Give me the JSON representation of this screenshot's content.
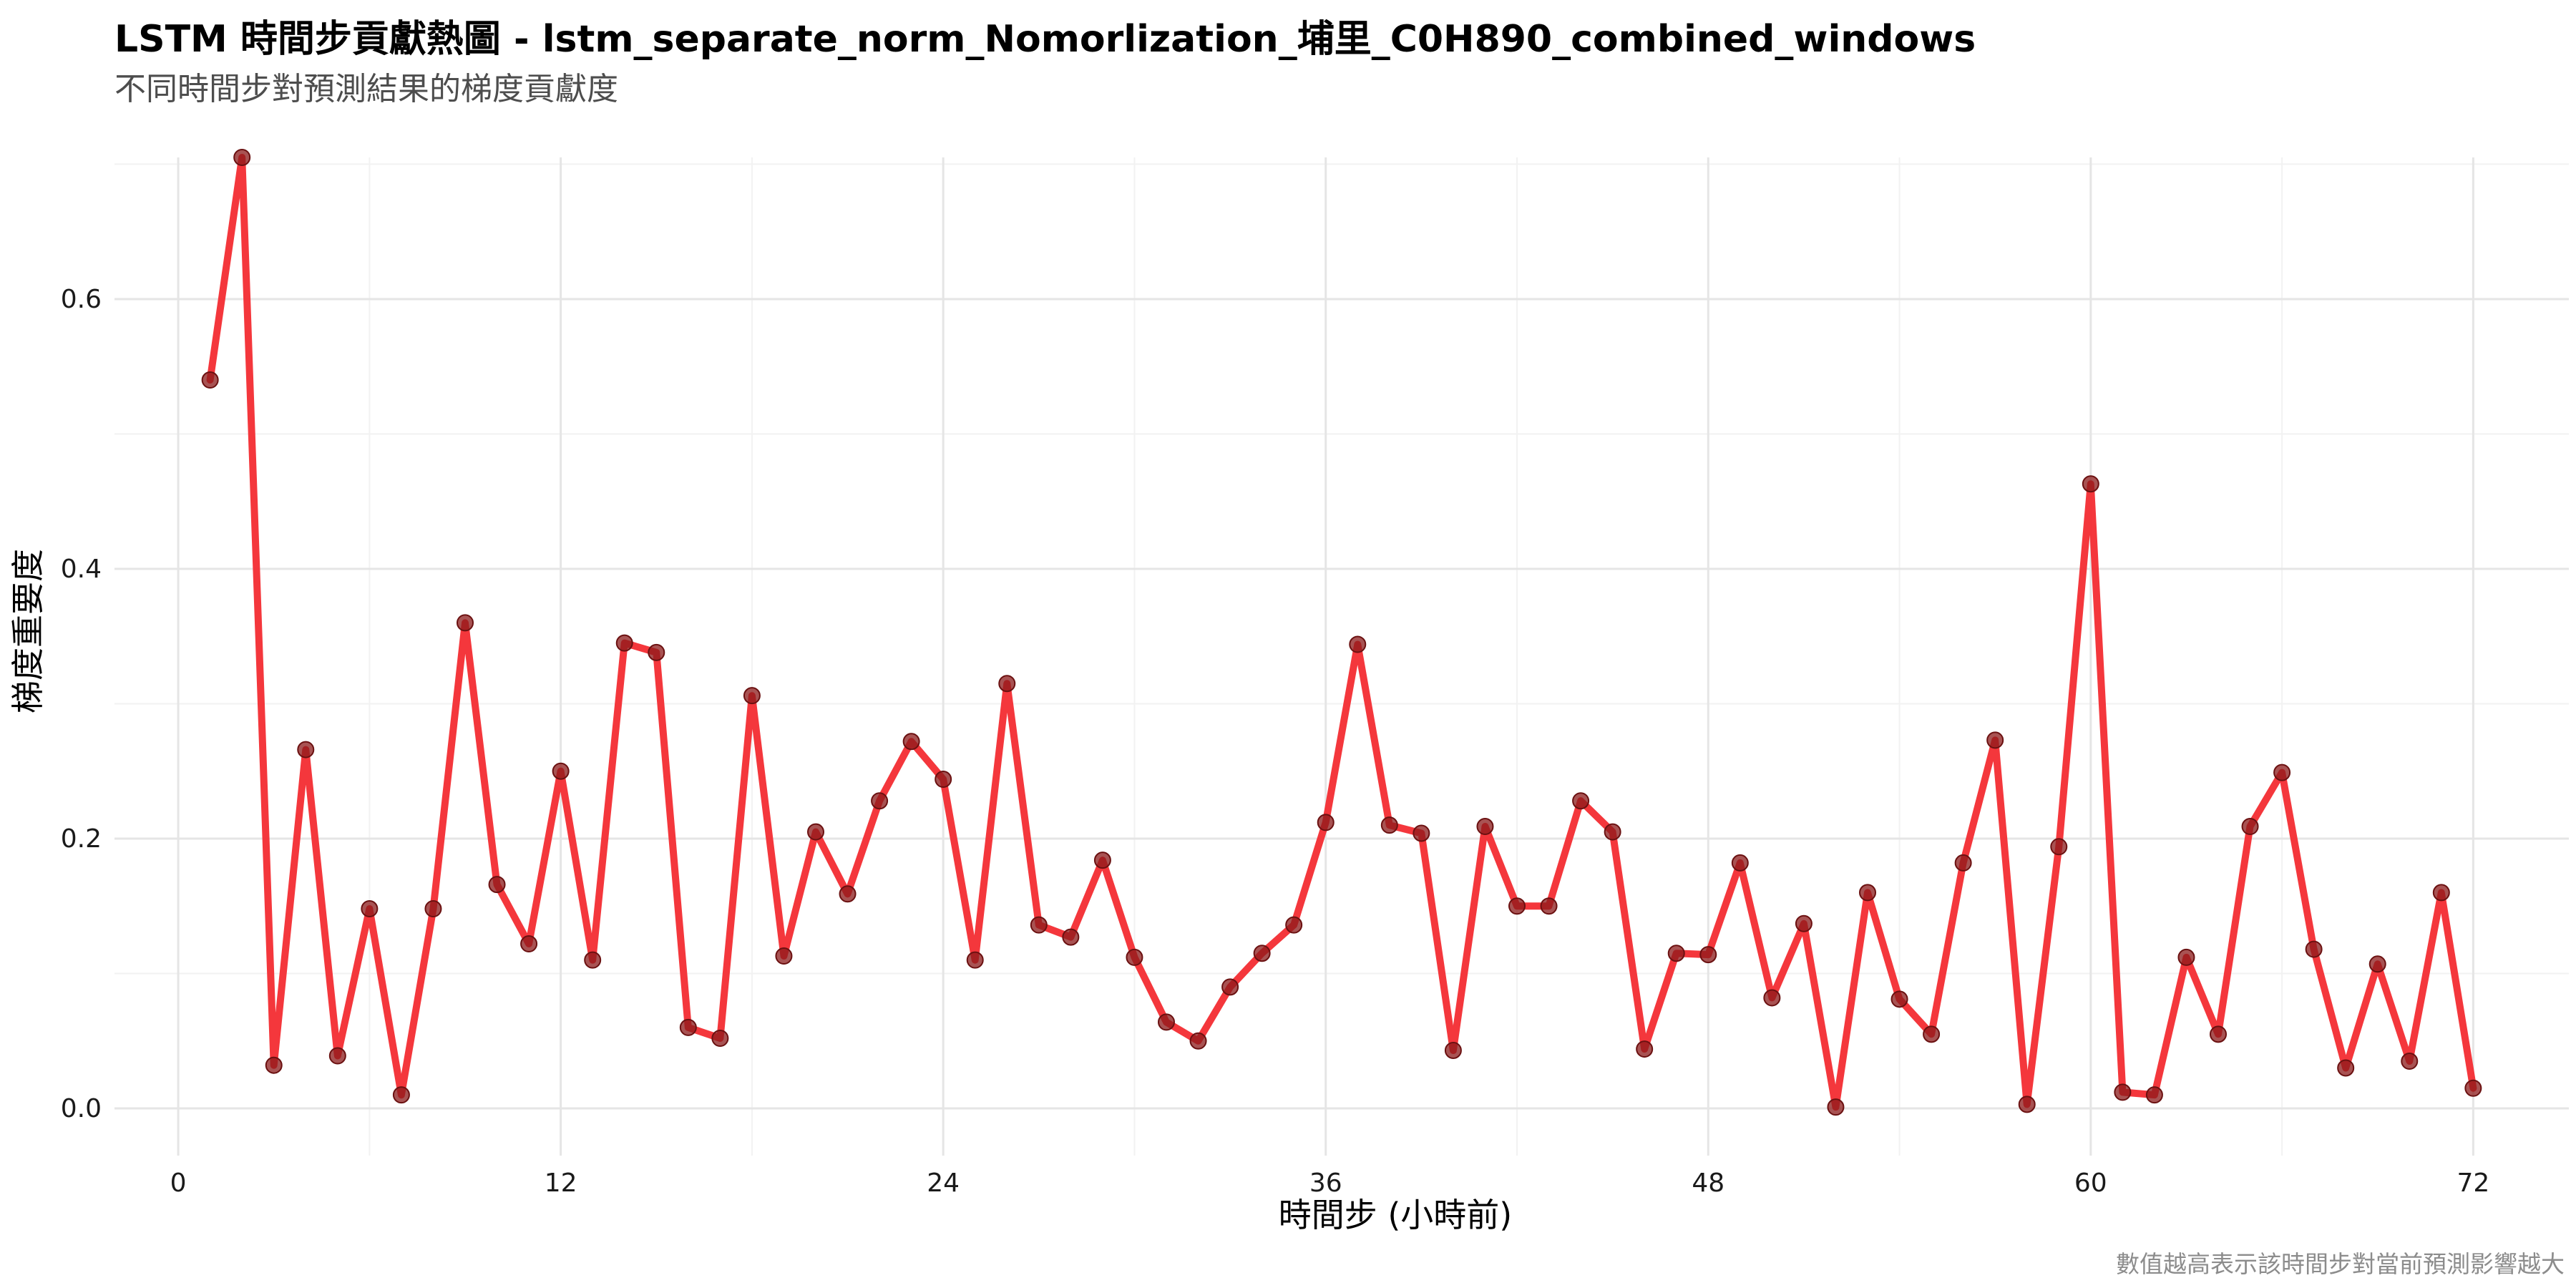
{
  "chart_data": {
    "type": "line",
    "title": "LSTM 時間步貢獻熱圖 - lstm_separate_norm_Nomorlization_埔里_C0H890_combined_windows",
    "subtitle": "不同時間步對預測結果的梯度貢獻度",
    "xlabel": "時間步 (小時前)",
    "ylabel": "梯度重要度",
    "caption": "數值越高表示該時間步對當前預測影響越大",
    "xlim": [
      -2,
      75
    ],
    "ylim": [
      -0.035,
      0.705
    ],
    "x_ticks": [
      0,
      12,
      24,
      36,
      48,
      60,
      72
    ],
    "y_ticks": [
      0.0,
      0.2,
      0.4,
      0.6
    ],
    "y_tick_labels": [
      "0.0",
      "0.2",
      "0.4",
      "0.6"
    ],
    "grid": true,
    "line_color": "#f32c32",
    "point_color": "#8b1a1a",
    "series": [
      {
        "x": [
          1,
          2,
          3,
          4,
          5,
          6,
          7,
          8,
          9,
          10,
          11,
          12,
          13,
          14,
          15,
          16,
          17,
          18,
          19,
          20,
          21,
          22,
          23,
          24,
          25,
          26,
          27,
          28,
          29,
          30,
          31,
          32,
          33,
          34,
          35,
          36,
          37,
          38,
          39,
          40,
          41,
          42,
          43,
          44,
          45,
          46,
          47,
          48,
          49,
          50,
          51,
          52,
          53,
          54,
          55,
          56,
          57,
          58,
          59,
          60,
          61,
          62,
          63,
          64,
          65,
          66,
          67,
          68,
          69,
          70,
          71,
          72
        ],
        "values": [
          0.54,
          0.705,
          0.032,
          0.266,
          0.039,
          0.148,
          0.01,
          0.148,
          0.36,
          0.166,
          0.122,
          0.25,
          0.11,
          0.345,
          0.338,
          0.06,
          0.052,
          0.306,
          0.113,
          0.205,
          0.159,
          0.228,
          0.272,
          0.244,
          0.11,
          0.315,
          0.136,
          0.127,
          0.184,
          0.112,
          0.064,
          0.05,
          0.09,
          0.115,
          0.136,
          0.212,
          0.344,
          0.21,
          0.204,
          0.043,
          0.209,
          0.15,
          0.15,
          0.228,
          0.205,
          0.044,
          0.115,
          0.114,
          0.182,
          0.082,
          0.137,
          0.001,
          0.16,
          0.081,
          0.055,
          0.182,
          0.273,
          0.003,
          0.194,
          0.463,
          0.012,
          0.01,
          0.112,
          0.055,
          0.209,
          0.249,
          0.118,
          0.03,
          0.107,
          0.035,
          0.16,
          0.015
        ]
      }
    ]
  }
}
